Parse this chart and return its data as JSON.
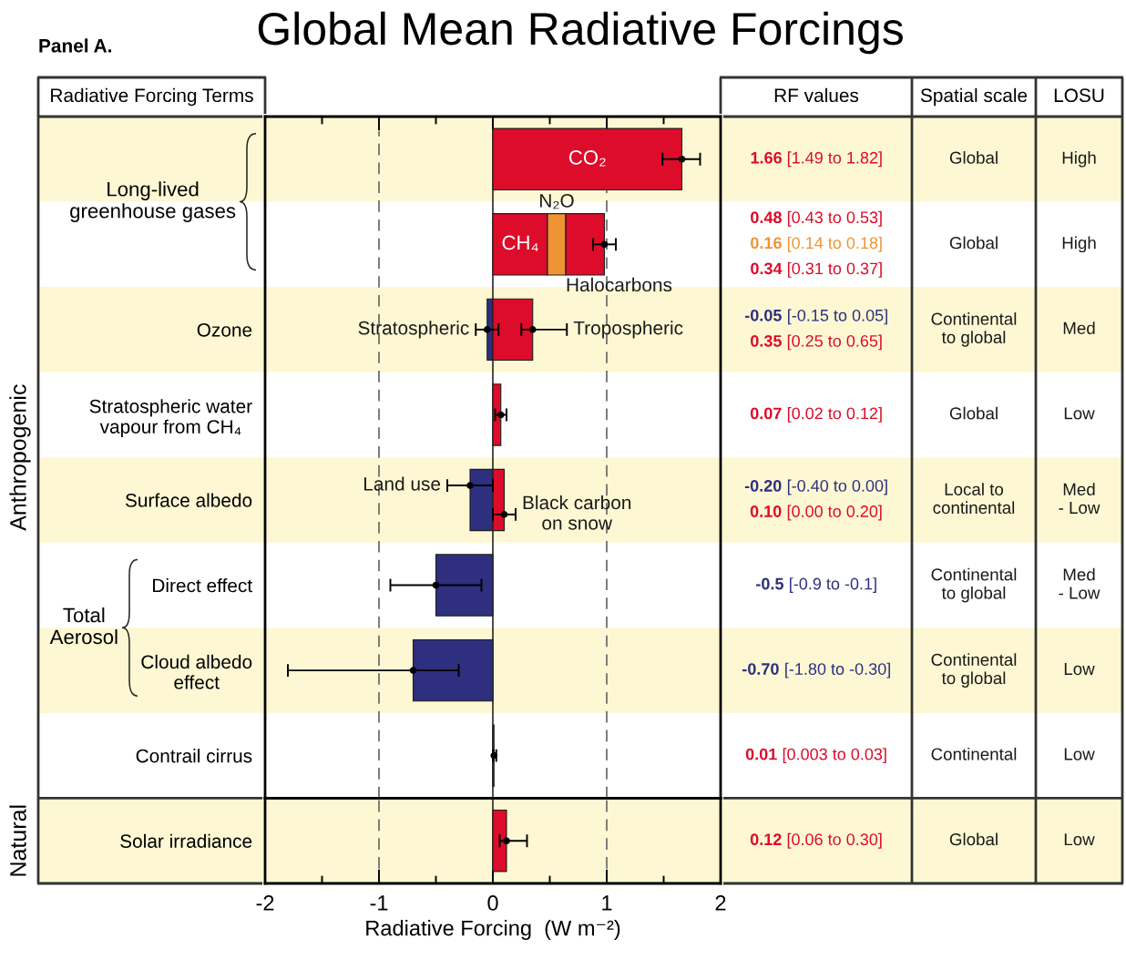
{
  "chart_data": [
    {
      "type": "bar",
      "orientation": "horizontal",
      "stacked": true,
      "title": "Global Mean Radiative Forcings",
      "ylabel": "Anthropogenic",
      "annotations": [
        "Panel A.",
        "Radiative Forcing Terms",
        "Long-lived\ngreenhouse gases",
        "Total\nAerosol"
      ],
      "categories": [
        null,
        null,
        "Ozone",
        "Stratospheric water\nvapour from CH₄",
        "Surface albedo",
        "Direct effect",
        "Cloud albedo\neffect",
        "Contrail cirrus"
      ],
      "series": [
        {
          "name": "CO₂",
          "color": "#dc0c2a",
          "values": [
            1.66,
            null,
            null,
            null,
            null,
            null,
            null,
            null
          ]
        },
        {
          "name": "CH₄",
          "color": "#dc0c2a",
          "values": [
            null,
            0.48,
            null,
            null,
            null,
            null,
            null,
            null
          ]
        },
        {
          "name": "N₂O",
          "color": "#ee9433",
          "values": [
            null,
            0.16,
            null,
            null,
            null,
            null,
            null,
            null
          ]
        },
        {
          "name": "Halocarbons",
          "color": "#dc0c2a",
          "values": [
            null,
            0.34,
            null,
            null,
            null,
            null,
            null,
            null
          ]
        },
        {
          "name": "Stratospheric",
          "color": "#2e2f7f",
          "values": [
            null,
            null,
            -0.05,
            null,
            null,
            null,
            null,
            null
          ]
        },
        {
          "name": "Tropospheric",
          "color": "#dc0c2a",
          "values": [
            null,
            null,
            0.35,
            null,
            null,
            null,
            null,
            null
          ]
        },
        {
          "name": "Land use",
          "color": "#2e2f7f",
          "values": [
            null,
            null,
            null,
            null,
            -0.2,
            null,
            null,
            null
          ]
        },
        {
          "name": "Black carbon\non snow",
          "color": "#dc0c2a",
          "values": [
            null,
            null,
            null,
            null,
            0.1,
            null,
            null,
            null
          ]
        },
        {
          "color": "#dc0c2a",
          "values": [
            null,
            null,
            null,
            0.07,
            null,
            null,
            null,
            0.01
          ]
        },
        {
          "color": "#2e2f7f",
          "values": [
            null,
            null,
            null,
            null,
            null,
            -0.5,
            -0.7,
            null
          ]
        },
        {
          "type": "scatter",
          "color": "#000000",
          "marker": "circle",
          "values": [
            1.66,
            0.98,
            -0.05,
            0.07,
            -0.2,
            -0.5,
            -0.7,
            0.01
          ],
          "errors": [
            [
              1.49,
              1.82
            ],
            [
              0.88,
              1.08
            ],
            [
              -0.15,
              0.05
            ],
            [
              0.02,
              0.12
            ],
            [
              -0.4,
              0.0
            ],
            [
              -0.9,
              -0.1
            ],
            [
              -1.8,
              -0.3
            ],
            [
              0.003,
              0.03
            ]
          ]
        },
        {
          "type": "scatter",
          "color": "#000000",
          "marker": "circle",
          "values": [
            null,
            null,
            0.35,
            null,
            0.1,
            null,
            null,
            null
          ],
          "errors": [
            null,
            null,
            [
              0.25,
              0.65
            ],
            null,
            [
              0.0,
              0.2
            ],
            null,
            null,
            null
          ]
        }
      ],
      "ref_lines": [
        {
          "axis": "x",
          "value": -1,
          "line_style": "dashed",
          "color": "#707070"
        },
        {
          "axis": "x",
          "value": 1,
          "line_style": "dashed",
          "color": "#707070"
        },
        {
          "axis": "x",
          "value": 0,
          "line_style": "solid",
          "color": "#000000"
        }
      ],
      "xlim": [
        -2,
        2
      ],
      "xticks": [
        -2,
        {
          "value": -1.5,
          "label": null
        },
        -1,
        {
          "value": -0.5,
          "label": null
        },
        0,
        {
          "value": 0.5,
          "label": null
        },
        1,
        {
          "value": 1.5,
          "label": null
        },
        2
      ],
      "tick_labels": "y"
    },
    {
      "type": "bar",
      "orientation": "horizontal",
      "ylabel": "Natural",
      "xlabel": "Radiative Forcing  (W m⁻²)",
      "categories": [
        "Solar irradiance"
      ],
      "series": [
        {
          "color": "#dc0c2a",
          "values": [
            0.12
          ]
        },
        {
          "type": "scatter",
          "color": "#000000",
          "marker": "circle",
          "values": [
            0.12
          ],
          "errors": [
            [
              0.06,
              0.3
            ]
          ]
        }
      ],
      "ref_lines": [
        {
          "axis": "x",
          "value": -1,
          "line_style": "dashed",
          "color": "#707070"
        },
        {
          "axis": "x",
          "value": 1,
          "line_style": "dashed",
          "color": "#707070"
        },
        {
          "axis": "x",
          "value": 0,
          "line_style": "solid",
          "color": "#000000"
        }
      ],
      "xlim": [
        -2,
        2
      ],
      "xticks": [
        -2,
        {
          "value": -1.5,
          "label": null
        },
        -1,
        {
          "value": -0.5,
          "label": null
        },
        0,
        {
          "value": 0.5,
          "label": null
        },
        1,
        {
          "value": 1.5,
          "label": null
        },
        2
      ]
    },
    {
      "type": "other",
      "title": "RF values",
      "annotations": [
        "1.66 [1.49 to 1.82]",
        "0.48 [0.43 to 0.53]",
        "0.16 [0.14 to 0.18]",
        "0.34 [0.31 to 0.37]",
        "-0.05 [-0.15 to 0.05]",
        "0.35 [0.25 to 0.65]",
        "0.07 [0.02 to 0.12]",
        "-0.20 [-0.40 to 0.00]",
        "0.10 [0.00 to 0.20]",
        "-0.5 [-0.9 to -0.1]",
        "-0.70 [-1.80 to -0.30]",
        "0.01 [0.003 to 0.03]",
        "0.12 [0.06 to 0.30]"
      ],
      "colors": [
        "#dc0c2a",
        "#dc0c2a",
        "#ee9433",
        "#dc0c2a",
        "#2e2f7f",
        "#dc0c2a",
        "#dc0c2a",
        "#2e2f7f",
        "#dc0c2a",
        "#2e2f7f",
        "#2e2f7f",
        "#dc0c2a",
        "#dc0c2a"
      ]
    },
    {
      "type": "other",
      "title": "Spatial scale",
      "annotations": [
        "Global",
        "Global",
        "Continental\nto global",
        "Global",
        "Local to\ncontinental",
        "Continental\nto global",
        "Continental\nto global",
        "Continental",
        "Global"
      ]
    },
    {
      "type": "other",
      "title": "LOSU",
      "annotations": [
        "High",
        "High",
        "Med",
        "Low",
        "Med\n- Low",
        "Med\n- Low",
        "Low",
        "Low",
        "Low"
      ]
    }
  ]
}
